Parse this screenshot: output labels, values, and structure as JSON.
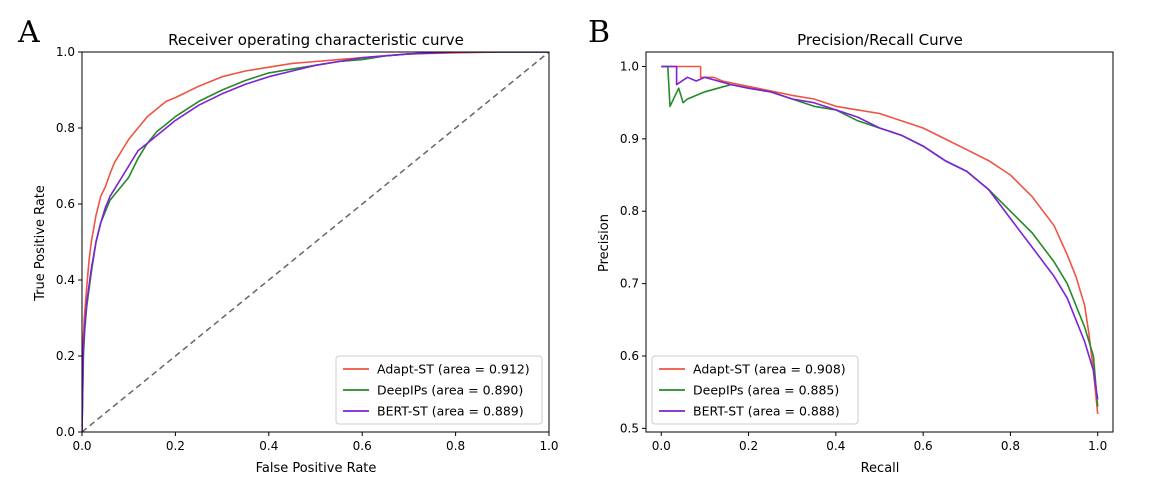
{
  "chart_data": [
    {
      "panel": "A",
      "type": "line",
      "title": "Receiver operating characteristic curve",
      "xlabel": "False Positive Rate",
      "ylabel": "True Positive Rate",
      "xlim": [
        0.0,
        1.0
      ],
      "ylim": [
        0.0,
        1.0
      ],
      "xticks": [
        "0.0",
        "0.2",
        "0.4",
        "0.6",
        "0.8",
        "1.0"
      ],
      "yticks": [
        "0.0",
        "0.2",
        "0.4",
        "0.6",
        "0.8",
        "1.0"
      ],
      "grid": false,
      "legend_position": "lower-right",
      "series": [
        {
          "name": "Adapt-ST (area = 0.912)",
          "color": "#ee5543",
          "x": [
            0,
            0.002,
            0.005,
            0.01,
            0.015,
            0.02,
            0.03,
            0.04,
            0.05,
            0.06,
            0.07,
            0.08,
            0.09,
            0.1,
            0.12,
            0.14,
            0.16,
            0.18,
            0.2,
            0.25,
            0.3,
            0.35,
            0.4,
            0.45,
            0.5,
            0.55,
            0.6,
            0.65,
            0.7,
            0.8,
            0.9,
            1.0
          ],
          "y": [
            0,
            0.22,
            0.3,
            0.38,
            0.45,
            0.5,
            0.57,
            0.62,
            0.645,
            0.68,
            0.71,
            0.73,
            0.75,
            0.77,
            0.8,
            0.83,
            0.85,
            0.87,
            0.88,
            0.91,
            0.935,
            0.95,
            0.96,
            0.97,
            0.975,
            0.98,
            0.985,
            0.99,
            0.995,
            0.998,
            1.0,
            1.0
          ]
        },
        {
          "name": "DeepIPs (area = 0.890)",
          "color": "#268a28",
          "x": [
            0,
            0.003,
            0.006,
            0.01,
            0.02,
            0.03,
            0.04,
            0.05,
            0.06,
            0.08,
            0.1,
            0.12,
            0.14,
            0.16,
            0.18,
            0.2,
            0.25,
            0.3,
            0.35,
            0.4,
            0.45,
            0.5,
            0.55,
            0.6,
            0.65,
            0.7,
            0.8,
            0.9,
            1.0
          ],
          "y": [
            0,
            0.2,
            0.27,
            0.33,
            0.42,
            0.5,
            0.55,
            0.58,
            0.61,
            0.64,
            0.67,
            0.72,
            0.76,
            0.79,
            0.81,
            0.83,
            0.87,
            0.9,
            0.925,
            0.945,
            0.955,
            0.965,
            0.975,
            0.98,
            0.99,
            0.995,
            1.0,
            1.0,
            1.0
          ]
        },
        {
          "name": "BERT-ST (area = 0.889)",
          "color": "#7e22d8",
          "x": [
            0,
            0.003,
            0.006,
            0.01,
            0.02,
            0.03,
            0.04,
            0.05,
            0.06,
            0.08,
            0.1,
            0.12,
            0.14,
            0.16,
            0.18,
            0.2,
            0.25,
            0.3,
            0.35,
            0.4,
            0.45,
            0.5,
            0.55,
            0.6,
            0.65,
            0.7,
            0.8,
            0.9,
            1.0
          ],
          "y": [
            0,
            0.22,
            0.28,
            0.34,
            0.43,
            0.5,
            0.55,
            0.59,
            0.62,
            0.66,
            0.7,
            0.74,
            0.76,
            0.78,
            0.8,
            0.82,
            0.86,
            0.89,
            0.915,
            0.935,
            0.95,
            0.965,
            0.975,
            0.985,
            0.99,
            0.995,
            1.0,
            1.0,
            1.0
          ]
        },
        {
          "name": "",
          "color": "#666666",
          "dashed": true,
          "x": [
            0,
            1
          ],
          "y": [
            0,
            1
          ]
        }
      ]
    },
    {
      "panel": "B",
      "type": "line",
      "title": "Precision/Recall Curve",
      "xlabel": "Recall",
      "ylabel": "Precision",
      "xlim": [
        -0.035,
        1.035
      ],
      "ylim": [
        0.495,
        1.02
      ],
      "xticks": [
        "0.0",
        "0.2",
        "0.4",
        "0.6",
        "0.8",
        "1.0"
      ],
      "yticks": [
        "0.5",
        "0.6",
        "0.7",
        "0.8",
        "0.9",
        "1.0"
      ],
      "grid": false,
      "legend_position": "lower-left",
      "series": [
        {
          "name": "Adapt-ST (area = 0.908)",
          "color": "#ee5543",
          "x": [
            0,
            0.09,
            0.09,
            0.12,
            0.14,
            0.18,
            0.22,
            0.26,
            0.3,
            0.35,
            0.4,
            0.45,
            0.5,
            0.55,
            0.6,
            0.65,
            0.7,
            0.75,
            0.8,
            0.85,
            0.9,
            0.93,
            0.95,
            0.97,
            0.98,
            0.99,
            1.0
          ],
          "y": [
            1.0,
            1.0,
            0.985,
            0.985,
            0.98,
            0.975,
            0.97,
            0.965,
            0.96,
            0.955,
            0.945,
            0.94,
            0.935,
            0.925,
            0.915,
            0.9,
            0.885,
            0.87,
            0.85,
            0.82,
            0.78,
            0.74,
            0.71,
            0.67,
            0.63,
            0.58,
            0.52
          ]
        },
        {
          "name": "DeepIPs (area = 0.885)",
          "color": "#268a28",
          "x": [
            0,
            0.015,
            0.02,
            0.04,
            0.05,
            0.06,
            0.08,
            0.1,
            0.13,
            0.16,
            0.2,
            0.25,
            0.3,
            0.35,
            0.4,
            0.45,
            0.5,
            0.55,
            0.6,
            0.65,
            0.7,
            0.75,
            0.8,
            0.85,
            0.9,
            0.93,
            0.95,
            0.97,
            0.99,
            1.0
          ],
          "y": [
            1.0,
            1.0,
            0.945,
            0.97,
            0.95,
            0.955,
            0.96,
            0.965,
            0.97,
            0.975,
            0.97,
            0.965,
            0.955,
            0.945,
            0.94,
            0.925,
            0.915,
            0.905,
            0.89,
            0.87,
            0.855,
            0.83,
            0.8,
            0.77,
            0.73,
            0.7,
            0.67,
            0.64,
            0.6,
            0.53
          ]
        },
        {
          "name": "BERT-ST (area = 0.888)",
          "color": "#7e22d8",
          "x": [
            0,
            0.035,
            0.035,
            0.06,
            0.08,
            0.1,
            0.13,
            0.16,
            0.2,
            0.25,
            0.3,
            0.35,
            0.4,
            0.45,
            0.5,
            0.55,
            0.6,
            0.65,
            0.7,
            0.75,
            0.8,
            0.85,
            0.9,
            0.93,
            0.95,
            0.97,
            0.99,
            1.0
          ],
          "y": [
            1.0,
            1.0,
            0.975,
            0.985,
            0.98,
            0.985,
            0.98,
            0.975,
            0.97,
            0.965,
            0.955,
            0.95,
            0.94,
            0.93,
            0.915,
            0.905,
            0.89,
            0.87,
            0.855,
            0.83,
            0.79,
            0.75,
            0.71,
            0.68,
            0.65,
            0.62,
            0.58,
            0.54
          ]
        }
      ]
    }
  ]
}
